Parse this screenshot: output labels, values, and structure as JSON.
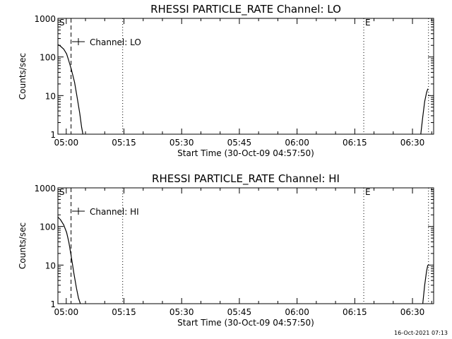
{
  "footer_text": "16-Oct-2021 07:13",
  "chart_data": [
    {
      "type": "line",
      "title": "RHESSI PARTICLE_RATE Channel: LO",
      "xlabel": "Start Time (30-Oct-09 04:57:50)",
      "ylabel": "Counts/sec",
      "yscale": "log",
      "ylim": [
        1,
        1000
      ],
      "xlim": [
        "04:57:50",
        "06:35:30"
      ],
      "x_tick_labels": [
        "05:00",
        "05:15",
        "05:30",
        "05:45",
        "06:00",
        "06:15",
        "06:30"
      ],
      "y_tick_labels": [
        "1",
        "10",
        "100",
        "1000"
      ],
      "legend": "Channel: LO",
      "legend_position": "top-left",
      "vertical_markers": [
        {
          "time": "05:01:15",
          "style": "dashed",
          "label": ""
        },
        {
          "time": "05:14:40",
          "style": "dotted",
          "label": ""
        },
        {
          "time": "06:17:20",
          "style": "dotted",
          "label": "E"
        },
        {
          "time": "06:34:10",
          "style": "dotted",
          "label": ""
        }
      ],
      "corner_label": "S",
      "series": [
        {
          "name": "Channel: LO",
          "segments": [
            {
              "x": [
                "04:57:50",
                "04:58:30",
                "04:59:20",
                "05:00:05",
                "05:00:40",
                "05:01:20",
                "05:02:10",
                "05:02:50",
                "05:03:30",
                "05:04:00",
                "05:04:20"
              ],
              "y": [
                210,
                190,
                160,
                120,
                80,
                47,
                22,
                9,
                3.5,
                1.5,
                1
              ]
            },
            {
              "x": [
                "06:32:10",
                "06:32:40",
                "06:33:10",
                "06:33:40",
                "06:34:00"
              ],
              "y": [
                1,
                2.8,
                7,
                12,
                15
              ]
            }
          ]
        }
      ]
    },
    {
      "type": "line",
      "title": "RHESSI PARTICLE_RATE Channel: HI",
      "xlabel": "Start Time (30-Oct-09 04:57:50)",
      "ylabel": "Counts/sec",
      "yscale": "log",
      "ylim": [
        1,
        1000
      ],
      "xlim": [
        "04:57:50",
        "06:35:30"
      ],
      "x_tick_labels": [
        "05:00",
        "05:15",
        "05:30",
        "05:45",
        "06:00",
        "06:15",
        "06:30"
      ],
      "y_tick_labels": [
        "1",
        "10",
        "100",
        "1000"
      ],
      "legend": "Channel: HI",
      "legend_position": "top-left",
      "vertical_markers": [
        {
          "time": "05:01:15",
          "style": "dashed",
          "label": ""
        },
        {
          "time": "05:14:40",
          "style": "dotted",
          "label": ""
        },
        {
          "time": "06:17:20",
          "style": "dotted",
          "label": "E"
        },
        {
          "time": "06:34:10",
          "style": "dotted",
          "label": ""
        }
      ],
      "corner_label": "S",
      "series": [
        {
          "name": "Channel: HI",
          "segments": [
            {
              "x": [
                "04:57:50",
                "04:58:30",
                "04:59:20",
                "05:00:05",
                "05:00:40",
                "05:01:15",
                "05:02:00",
                "05:02:40",
                "05:03:10",
                "05:03:40"
              ],
              "y": [
                175,
                150,
                110,
                70,
                40,
                18,
                6,
                2.5,
                1.4,
                1
              ]
            },
            {
              "x": [
                "06:32:40",
                "06:33:10",
                "06:33:40",
                "06:34:00"
              ],
              "y": [
                1,
                3,
                7,
                10
              ]
            }
          ]
        }
      ]
    }
  ]
}
